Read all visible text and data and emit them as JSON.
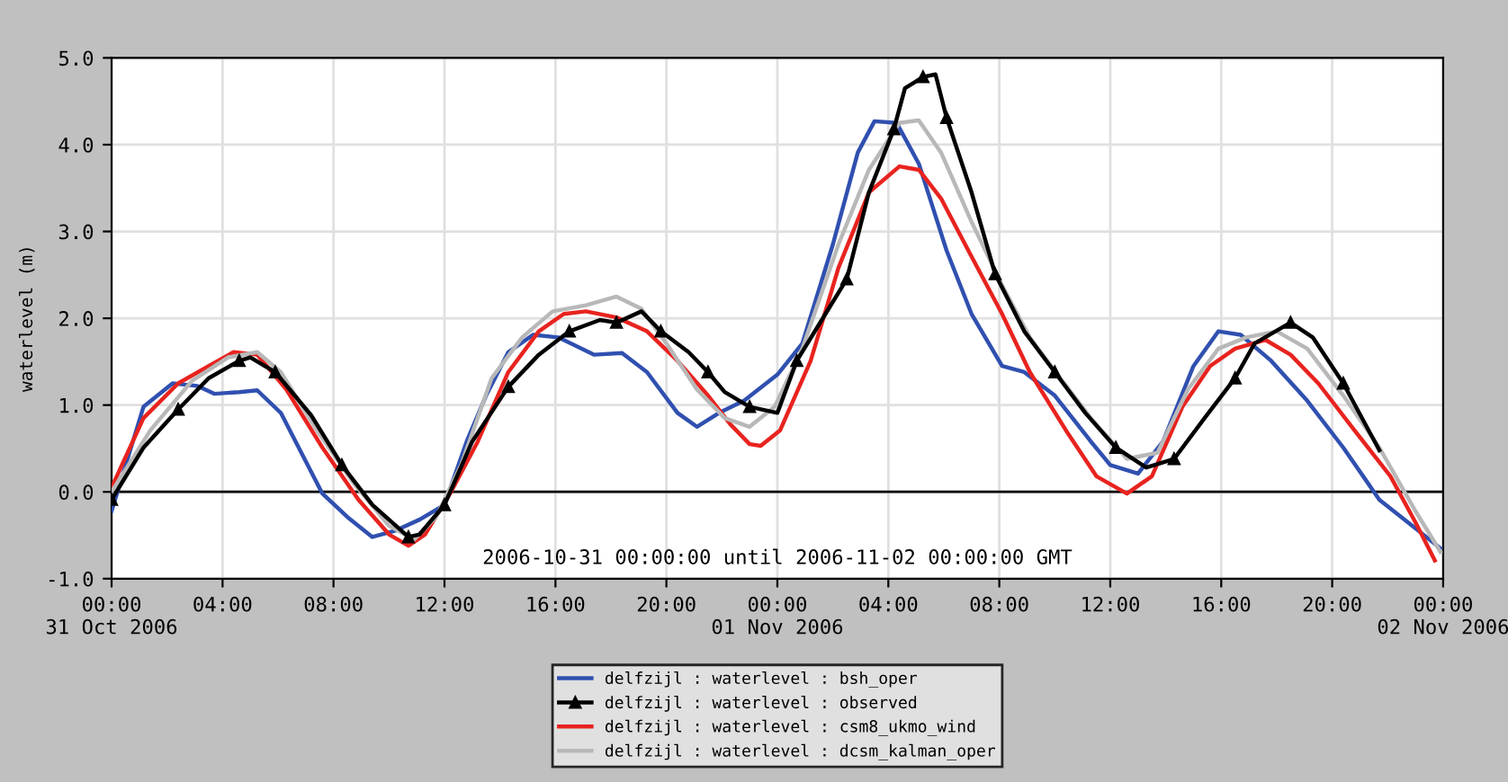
{
  "chart_data": {
    "type": "line",
    "ylabel": "waterlevel (m)",
    "annotations": [
      "2006-10-31 00:00:00 until 2006-11-02 00:00:00 GMT"
    ],
    "xlim": [
      "2006-10-31T00:00",
      "2006-11-02T00:00"
    ],
    "ylim": [
      -1,
      5
    ],
    "xticks": [
      {
        "value": "2006-10-31T00:00",
        "label": "00:00\n31 Oct 2006"
      },
      {
        "value": "2006-10-31T04:00",
        "label": "04:00"
      },
      {
        "value": "2006-10-31T08:00",
        "label": "08:00"
      },
      {
        "value": "2006-10-31T12:00",
        "label": "12:00"
      },
      {
        "value": "2006-10-31T16:00",
        "label": "16:00"
      },
      {
        "value": "2006-10-31T20:00",
        "label": "20:00"
      },
      {
        "value": "2006-11-01T00:00",
        "label": "00:00\n01 Nov 2006"
      },
      {
        "value": "2006-11-01T04:00",
        "label": "04:00"
      },
      {
        "value": "2006-11-01T08:00",
        "label": "08:00"
      },
      {
        "value": "2006-11-01T12:00",
        "label": "12:00"
      },
      {
        "value": "2006-11-01T16:00",
        "label": "16:00"
      },
      {
        "value": "2006-11-01T20:00",
        "label": "20:00"
      },
      {
        "value": "2006-11-02T00:00",
        "label": "00:00\n02 Nov 2006"
      }
    ],
    "yticks": [
      {
        "value": -1,
        "label": "-1.0"
      },
      {
        "value": 0,
        "label": "0.0"
      },
      {
        "value": 1,
        "label": "1.0"
      },
      {
        "value": 2,
        "label": "2.0"
      },
      {
        "value": 3,
        "label": "3.0"
      },
      {
        "value": 4,
        "label": "4.0"
      },
      {
        "value": 5,
        "label": "5.0"
      }
    ],
    "grid": true,
    "legend": "bottom",
    "ref_lines": [
      {
        "axis": "y",
        "value": 0,
        "color": "#000000"
      }
    ],
    "series": [
      {
        "name": "delfzijl : waterlevel : bsh_oper",
        "color": "#3050b0",
        "marker": "none",
        "x": [
          "2006-10-31T00:00",
          "2006-10-31T01:09",
          "2006-10-31T02:12",
          "2006-10-31T03:06",
          "2006-10-31T03:42",
          "2006-10-31T04:36",
          "2006-10-31T05:15",
          "2006-10-31T06:06",
          "2006-10-31T07:36",
          "2006-10-31T08:30",
          "2006-10-31T09:24",
          "2006-10-31T10:12",
          "2006-10-31T11:06",
          "2006-10-31T12:00",
          "2006-10-31T12:48",
          "2006-10-31T13:30",
          "2006-10-31T14:18",
          "2006-10-31T15:12",
          "2006-10-31T16:06",
          "2006-10-31T17:24",
          "2006-10-31T18:24",
          "2006-10-31T19:18",
          "2006-10-31T20:24",
          "2006-10-31T21:06",
          "2006-10-31T21:54",
          "2006-10-31T22:48",
          "2006-11-01T00:00",
          "2006-11-01T00:54",
          "2006-11-01T02:00",
          "2006-11-01T02:54",
          "2006-11-01T03:30",
          "2006-11-01T04:18",
          "2006-11-01T05:06",
          "2006-11-01T06:06",
          "2006-11-01T07:00",
          "2006-11-01T08:06",
          "2006-11-01T08:54",
          "2006-11-01T10:00",
          "2006-11-01T11:18",
          "2006-11-01T12:00",
          "2006-11-01T13:00",
          "2006-11-01T13:54",
          "2006-11-01T15:00",
          "2006-11-01T15:54",
          "2006-11-01T16:42",
          "2006-11-01T17:48",
          "2006-11-01T19:06",
          "2006-11-01T20:24",
          "2006-11-01T21:42",
          "2006-11-01T23:00",
          "2006-11-01T23:54"
        ],
        "values": [
          -0.22,
          0.98,
          1.25,
          1.22,
          1.13,
          1.15,
          1.17,
          0.91,
          -0.02,
          -0.29,
          -0.52,
          -0.45,
          -0.32,
          -0.15,
          0.58,
          1.11,
          1.61,
          1.81,
          1.78,
          1.58,
          1.6,
          1.38,
          0.91,
          0.75,
          0.91,
          1.05,
          1.35,
          1.71,
          2.85,
          3.91,
          4.27,
          4.25,
          3.78,
          2.78,
          2.05,
          1.45,
          1.38,
          1.11,
          0.58,
          0.31,
          0.21,
          0.58,
          1.45,
          1.85,
          1.81,
          1.51,
          1.05,
          0.51,
          -0.09,
          -0.42,
          -0.65
        ]
      },
      {
        "name": "delfzijl : waterlevel : observed",
        "color": "#000000",
        "marker": "triangle",
        "x": [
          "2006-10-31T00:00",
          "2006-10-31T01:09",
          "2006-10-31T02:24",
          "2006-10-31T03:30",
          "2006-10-31T04:36",
          "2006-10-31T05:00",
          "2006-10-31T05:54",
          "2006-10-31T07:12",
          "2006-10-31T08:18",
          "2006-10-31T09:24",
          "2006-10-31T10:42",
          "2006-10-31T11:06",
          "2006-10-31T12:00",
          "2006-10-31T13:00",
          "2006-10-31T14:18",
          "2006-10-31T15:24",
          "2006-10-31T16:30",
          "2006-10-31T17:36",
          "2006-10-31T18:12",
          "2006-10-31T19:06",
          "2006-10-31T19:48",
          "2006-10-31T20:48",
          "2006-10-31T21:30",
          "2006-10-31T22:06",
          "2006-10-31T23:00",
          "2006-11-01T00:00",
          "2006-11-01T00:42",
          "2006-11-01T01:36",
          "2006-11-01T02:30",
          "2006-11-01T03:18",
          "2006-11-01T04:12",
          "2006-11-01T04:36",
          "2006-11-01T05:15",
          "2006-11-01T05:42",
          "2006-11-01T06:06",
          "2006-11-01T07:00",
          "2006-11-01T07:51",
          "2006-11-01T08:54",
          "2006-11-01T10:00",
          "2006-11-01T11:06",
          "2006-11-01T12:12",
          "2006-11-01T13:18",
          "2006-11-01T14:18",
          "2006-11-01T15:24",
          "2006-11-01T16:30",
          "2006-11-01T17:12",
          "2006-11-01T18:30",
          "2006-11-01T19:18",
          "2006-11-01T20:24",
          "2006-11-01T21:42"
        ],
        "values": [
          -0.09,
          0.51,
          0.95,
          1.31,
          1.51,
          1.55,
          1.38,
          0.88,
          0.31,
          -0.15,
          -0.52,
          -0.49,
          -0.15,
          0.58,
          1.21,
          1.58,
          1.85,
          1.98,
          1.95,
          2.08,
          1.85,
          1.61,
          1.38,
          1.15,
          0.98,
          0.91,
          1.51,
          1.98,
          2.45,
          3.45,
          4.18,
          4.65,
          4.78,
          4.81,
          4.31,
          3.45,
          2.51,
          1.85,
          1.38,
          0.91,
          0.51,
          0.28,
          0.38,
          0.85,
          1.31,
          1.71,
          1.95,
          1.78,
          1.25,
          0.48
        ]
      },
      {
        "name": "delfzijl : waterlevel : csm8_ukmo_wind",
        "color": "#e8231f",
        "marker": "none",
        "x": [
          "2006-10-31T00:00",
          "2006-10-31T01:09",
          "2006-10-31T02:24",
          "2006-10-31T03:30",
          "2006-10-31T04:24",
          "2006-10-31T05:15",
          "2006-10-31T06:18",
          "2006-10-31T07:36",
          "2006-10-31T08:54",
          "2006-10-31T10:00",
          "2006-10-31T10:42",
          "2006-10-31T11:18",
          "2006-10-31T12:12",
          "2006-10-31T13:12",
          "2006-10-31T14:18",
          "2006-10-31T15:24",
          "2006-10-31T16:18",
          "2006-10-31T17:06",
          "2006-10-31T18:12",
          "2006-10-31T19:18",
          "2006-10-31T20:24",
          "2006-10-31T21:30",
          "2006-10-31T22:18",
          "2006-10-31T23:00",
          "2006-10-31T23:24",
          "2006-11-01T00:06",
          "2006-11-01T01:12",
          "2006-11-01T02:12",
          "2006-11-01T03:18",
          "2006-11-01T04:24",
          "2006-11-01T05:06",
          "2006-11-01T05:54",
          "2006-11-01T07:00",
          "2006-11-01T08:06",
          "2006-11-01T09:06",
          "2006-11-01T10:24",
          "2006-11-01T11:30",
          "2006-11-01T12:36",
          "2006-11-01T13:30",
          "2006-11-01T14:36",
          "2006-11-01T15:36",
          "2006-11-01T16:30",
          "2006-11-01T17:36",
          "2006-11-01T18:30",
          "2006-11-01T19:30",
          "2006-11-01T20:48",
          "2006-11-01T22:06",
          "2006-11-01T23:00",
          "2006-11-01T23:42"
        ],
        "values": [
          0.05,
          0.85,
          1.25,
          1.45,
          1.61,
          1.58,
          1.18,
          0.51,
          -0.09,
          -0.49,
          -0.62,
          -0.49,
          -0.02,
          0.58,
          1.38,
          1.85,
          2.05,
          2.08,
          2.01,
          1.85,
          1.51,
          1.11,
          0.78,
          0.55,
          0.53,
          0.71,
          1.51,
          2.58,
          3.45,
          3.75,
          3.71,
          3.38,
          2.71,
          2.05,
          1.38,
          0.71,
          0.18,
          -0.02,
          0.18,
          0.98,
          1.45,
          1.65,
          1.75,
          1.58,
          1.25,
          0.71,
          0.18,
          -0.35,
          -0.79
        ]
      },
      {
        "name": "delfzijl : waterlevel : dcsm_kalman_oper",
        "color": "#b8b8b8",
        "marker": "none",
        "x": [
          "2006-10-31T00:00",
          "2006-10-31T01:24",
          "2006-10-31T02:54",
          "2006-10-31T04:12",
          "2006-10-31T05:15",
          "2006-10-31T06:06",
          "2006-10-31T07:24",
          "2006-10-31T08:42",
          "2006-10-31T10:00",
          "2006-10-31T10:54",
          "2006-10-31T11:42",
          "2006-10-31T12:36",
          "2006-10-31T13:42",
          "2006-10-31T14:48",
          "2006-10-31T15:54",
          "2006-10-31T17:06",
          "2006-10-31T18:12",
          "2006-10-31T19:06",
          "2006-10-31T20:00",
          "2006-10-31T21:06",
          "2006-10-31T22:06",
          "2006-10-31T23:00",
          "2006-10-31T23:54",
          "2006-11-01T00:54",
          "2006-11-01T02:12",
          "2006-11-01T03:18",
          "2006-11-01T04:24",
          "2006-11-01T05:06",
          "2006-11-01T05:54",
          "2006-11-01T07:00",
          "2006-11-01T08:06",
          "2006-11-01T09:06",
          "2006-11-01T10:12",
          "2006-11-01T11:18",
          "2006-11-01T12:36",
          "2006-11-01T13:42",
          "2006-11-01T14:48",
          "2006-11-01T15:54",
          "2006-11-01T16:54",
          "2006-11-01T18:00",
          "2006-11-01T19:06",
          "2006-11-01T20:24",
          "2006-11-01T21:42",
          "2006-11-01T23:00",
          "2006-11-01T23:54"
        ],
        "values": [
          0,
          0.71,
          1.28,
          1.55,
          1.61,
          1.38,
          0.71,
          0.11,
          -0.39,
          -0.55,
          -0.29,
          0.31,
          1.31,
          1.78,
          2.08,
          2.15,
          2.25,
          2.11,
          1.71,
          1.18,
          0.85,
          0.75,
          0.98,
          1.65,
          2.85,
          3.71,
          4.25,
          4.28,
          3.91,
          3.11,
          2.38,
          1.78,
          1.31,
          0.85,
          0.38,
          0.45,
          1.18,
          1.65,
          1.78,
          1.85,
          1.65,
          1.11,
          0.51,
          -0.22,
          -0.69
        ]
      }
    ]
  }
}
